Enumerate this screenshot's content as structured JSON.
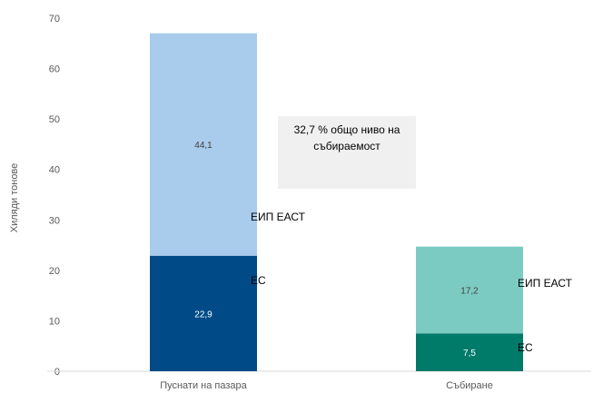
{
  "chart_data": {
    "type": "bar",
    "stacked": true,
    "categories": [
      "Пуснати на пазара",
      "Събиране"
    ],
    "series": [
      {
        "name": "ЕС",
        "values": [
          22.9,
          7.5
        ],
        "labels": [
          "22,9",
          "7,5"
        ],
        "colors": [
          "#004b87",
          "#007a69"
        ],
        "label_colors": [
          "#ffffff",
          "#ffffff"
        ]
      },
      {
        "name": "ЕИП ЕАСТ",
        "values": [
          44.1,
          17.2
        ],
        "labels": [
          "44,1",
          "17,2"
        ],
        "colors": [
          "#a9cbec",
          "#7ccbc2"
        ],
        "label_colors": [
          "#404040",
          "#404040"
        ]
      }
    ],
    "ylabel": "Хиляди тонове",
    "ylim": [
      0,
      70
    ],
    "yticks": [
      0,
      10,
      20,
      30,
      40,
      50,
      60,
      70
    ],
    "grid": false,
    "legend": "none",
    "annotation": {
      "lines": [
        "32,7 % общо ниво на",
        "събираемост"
      ],
      "background": "#f0f0f0"
    }
  }
}
